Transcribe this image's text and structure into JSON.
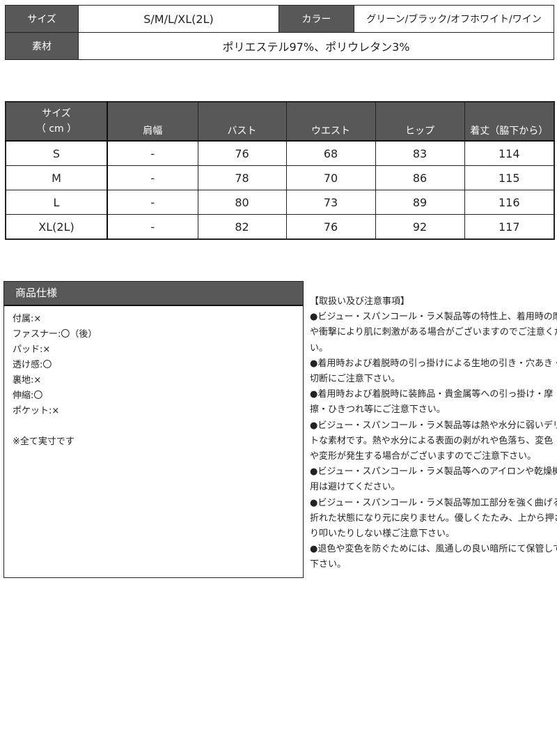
{
  "summary": {
    "size_label": "サイズ",
    "size_value": "S/M/L/XL(2L)",
    "color_label": "カラー",
    "color_value": "グリーン/ブラック/オフホワイト/ワイン",
    "material_label": "素材",
    "material_value": "ポリエステル97%、ポリウレタン3%"
  },
  "size_table": {
    "header_size_line1": "サイズ",
    "header_size_line2": "（ cm ）",
    "columns": [
      "肩幅",
      "バスト",
      "ウエスト",
      "ヒップ",
      "着丈（脇下から）"
    ],
    "rows": [
      {
        "size": "S",
        "values": [
          "-",
          "76",
          "68",
          "83",
          "114"
        ]
      },
      {
        "size": "M",
        "values": [
          "-",
          "78",
          "70",
          "86",
          "115"
        ]
      },
      {
        "size": "L",
        "values": [
          "-",
          "80",
          "73",
          "89",
          "116"
        ]
      },
      {
        "size": "XL(2L)",
        "values": [
          "-",
          "82",
          "76",
          "92",
          "117"
        ]
      }
    ]
  },
  "spec": {
    "title": "商品仕様",
    "items": [
      "付属:×",
      "ファスナー:〇（後）",
      "パッド:×",
      "透け感:〇",
      "裏地:×",
      "伸縮:〇",
      "ポケット:×"
    ],
    "note": "※全て実寸です"
  },
  "notes": {
    "title": "【取扱い及び注意事項】",
    "lines": [
      "●ビジュー・スパンコール・ラメ製品等の特性上、着用時の摩擦",
      "や衝撃により肌に刺激がある場合がございますのでご注意くださ",
      "い。",
      "●着用時および着脱時の引っ掛けによる生地の引き・穴あき・",
      "切断にご注意下さい。",
      "●着用時および着脱時に装飾品・貴金属等への引っ掛け・摩",
      "擦・ひきつれ等にご注意下さい。",
      "●ビジュー・スパンコール・ラメ製品等は熱や水分に弱いデリケー",
      "トな素材です。熱や水分による表面の剥がれや色落ち、変色",
      "や変形が発生する場合がございますのでご注意下さい。",
      "●ビジュー・スパンコール・ラメ製品等へのアイロンや乾燥機の使",
      "用は避けてください。",
      "●ビジュー・スパンコール・ラメ製品等加工部分を強く曲げると",
      "折れた状態になり元に戻りません。優しくたたみ、上から押さえた",
      "り叩いたりしない様ご注意下さい。",
      "●退色や変色を防ぐためには、風通しの良い暗所にて保管して",
      "下さい。"
    ]
  }
}
